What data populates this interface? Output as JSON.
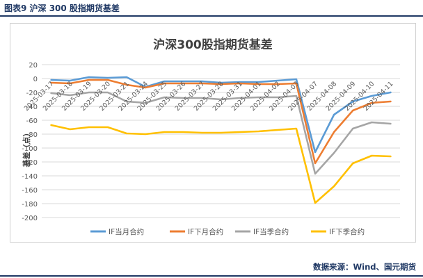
{
  "figure": {
    "label": "图表9   沪深 300 股指期货基差",
    "source": "数据来源：Wind、国元期货"
  },
  "colors": {
    "series": [
      "#5b9bd5",
      "#ed7d31",
      "#a5a5a5",
      "#ffc000"
    ],
    "header": "#1f3864",
    "grid": "#d9d9d9",
    "axis_text": "#595959"
  },
  "chart_data": {
    "type": "line",
    "title": "沪深300股指期货基差",
    "xlabel": "",
    "ylabel": "基差（点）",
    "ylim": [
      -200,
      20
    ],
    "yticks": [
      20,
      0,
      -20,
      -40,
      -60,
      -80,
      -100,
      -120,
      -140,
      -160,
      -180,
      -200
    ],
    "grid": true,
    "legend": "bottom",
    "categories": [
      "2025-03-17",
      "2025-03-18",
      "2025-03-19",
      "2025-03-20",
      "2025-03-21",
      "2025-03-24",
      "2025-03-25",
      "2025-03-26",
      "2025-03-27",
      "2025-03-28",
      "2025-03-31",
      "2025-04-01",
      "2025-04-02",
      "2025-04-03",
      "2025-04-07",
      "2025-04-08",
      "2025-04-09",
      "2025-04-10",
      "2025-04-11"
    ],
    "series": [
      {
        "name": "IF当月合约",
        "values": [
          -2,
          -3,
          2,
          1,
          2,
          -12,
          -4,
          -4,
          -4,
          -6,
          -5,
          -5,
          -3,
          -1,
          -106,
          -52,
          -33,
          -25,
          -20
        ]
      },
      {
        "name": "IF下月合约",
        "values": [
          -6,
          -7,
          -2,
          -2,
          -9,
          -13,
          -7,
          -7,
          -7,
          -8,
          -7,
          -8,
          -8,
          -7,
          -122,
          -77,
          -46,
          -35,
          -33
        ]
      },
      {
        "name": "IF当季合约",
        "values": [
          -21,
          -24,
          -20,
          -20,
          -33,
          -35,
          -27,
          -28,
          -28,
          -30,
          -28,
          -27,
          -27,
          -25,
          -137,
          -107,
          -72,
          -63,
          -65
        ]
      },
      {
        "name": "IF下季合约",
        "values": [
          -67,
          -73,
          -70,
          -70,
          -79,
          -80,
          -77,
          -77,
          -78,
          -78,
          -77,
          -76,
          -74,
          -72,
          -179,
          -155,
          -122,
          -111,
          -112
        ]
      }
    ]
  }
}
